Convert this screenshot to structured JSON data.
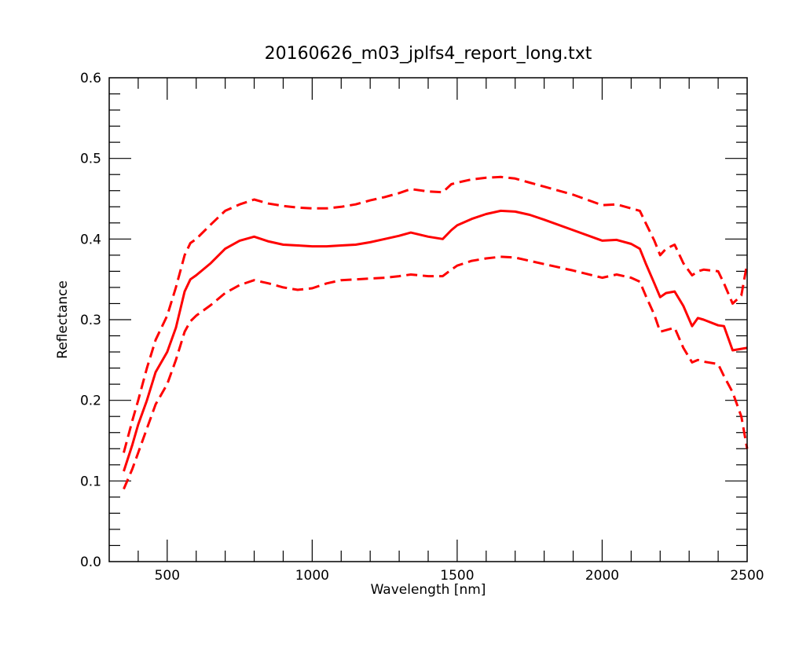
{
  "chart_data": {
    "type": "line",
    "title": "20160626_m03_jplfs4_report_long.txt",
    "xlabel": "Wavelength [nm]",
    "ylabel": "Reflectance",
    "xlim": [
      300,
      2500
    ],
    "ylim": [
      0.0,
      0.6
    ],
    "x_ticks": [
      500,
      1000,
      1500,
      2000,
      2500
    ],
    "y_ticks": [
      0.0,
      0.1,
      0.2,
      0.3,
      0.4,
      0.5,
      0.6
    ],
    "x_tick_labels": [
      "500",
      "1000",
      "1500",
      "2000",
      "2500"
    ],
    "y_tick_labels": [
      "0.0",
      "0.1",
      "0.2",
      "0.3",
      "0.4",
      "0.5",
      "0.6"
    ],
    "grid": false,
    "legend": "none",
    "color": "#ff0000",
    "series": [
      {
        "style": "solid",
        "x": [
          350,
          380,
          400,
          430,
          460,
          500,
          530,
          560,
          580,
          600,
          650,
          700,
          750,
          800,
          850,
          900,
          950,
          1000,
          1050,
          1100,
          1150,
          1200,
          1250,
          1300,
          1340,
          1400,
          1450,
          1480,
          1500,
          1550,
          1600,
          1650,
          1700,
          1750,
          1800,
          1900,
          2000,
          2050,
          2100,
          2130,
          2150,
          2180,
          2200,
          2220,
          2250,
          2280,
          2310,
          2330,
          2350,
          2400,
          2420,
          2450,
          2500
        ],
        "values": [
          0.112,
          0.145,
          0.17,
          0.2,
          0.235,
          0.26,
          0.29,
          0.335,
          0.35,
          0.355,
          0.37,
          0.388,
          0.398,
          0.403,
          0.397,
          0.393,
          0.392,
          0.391,
          0.391,
          0.392,
          0.393,
          0.396,
          0.4,
          0.404,
          0.408,
          0.403,
          0.4,
          0.411,
          0.417,
          0.425,
          0.431,
          0.435,
          0.434,
          0.43,
          0.424,
          0.411,
          0.398,
          0.399,
          0.394,
          0.388,
          0.37,
          0.345,
          0.328,
          0.333,
          0.335,
          0.317,
          0.292,
          0.302,
          0.3,
          0.293,
          0.292,
          0.262,
          0.265
        ]
      },
      {
        "style": "dashed",
        "x": [
          350,
          380,
          400,
          430,
          460,
          500,
          530,
          560,
          580,
          600,
          650,
          700,
          750,
          800,
          850,
          900,
          950,
          1000,
          1050,
          1100,
          1150,
          1200,
          1250,
          1300,
          1340,
          1400,
          1450,
          1480,
          1500,
          1550,
          1600,
          1650,
          1700,
          1750,
          1800,
          1900,
          2000,
          2050,
          2100,
          2130,
          2150,
          2180,
          2200,
          2220,
          2250,
          2280,
          2310,
          2330,
          2350,
          2400,
          2420,
          2450,
          2480,
          2500
        ],
        "values": [
          0.135,
          0.175,
          0.2,
          0.24,
          0.275,
          0.305,
          0.34,
          0.38,
          0.395,
          0.4,
          0.418,
          0.435,
          0.443,
          0.449,
          0.444,
          0.441,
          0.439,
          0.438,
          0.438,
          0.44,
          0.443,
          0.448,
          0.452,
          0.457,
          0.462,
          0.459,
          0.458,
          0.468,
          0.47,
          0.474,
          0.476,
          0.477,
          0.475,
          0.47,
          0.465,
          0.455,
          0.442,
          0.443,
          0.438,
          0.435,
          0.42,
          0.398,
          0.38,
          0.388,
          0.393,
          0.37,
          0.355,
          0.36,
          0.362,
          0.36,
          0.345,
          0.32,
          0.33,
          0.37
        ]
      },
      {
        "style": "dashed",
        "x": [
          350,
          380,
          400,
          430,
          460,
          500,
          530,
          560,
          580,
          600,
          650,
          700,
          750,
          800,
          850,
          900,
          950,
          1000,
          1050,
          1100,
          1150,
          1200,
          1250,
          1300,
          1340,
          1400,
          1450,
          1480,
          1500,
          1550,
          1600,
          1650,
          1700,
          1750,
          1800,
          1900,
          2000,
          2050,
          2100,
          2130,
          2150,
          2180,
          2200,
          2220,
          2250,
          2280,
          2310,
          2330,
          2350,
          2400,
          2420,
          2450,
          2480,
          2500
        ],
        "values": [
          0.09,
          0.115,
          0.135,
          0.165,
          0.195,
          0.22,
          0.25,
          0.285,
          0.298,
          0.305,
          0.318,
          0.333,
          0.343,
          0.349,
          0.345,
          0.34,
          0.337,
          0.339,
          0.345,
          0.349,
          0.35,
          0.351,
          0.352,
          0.354,
          0.356,
          0.354,
          0.354,
          0.362,
          0.367,
          0.373,
          0.376,
          0.378,
          0.377,
          0.373,
          0.369,
          0.361,
          0.352,
          0.356,
          0.352,
          0.347,
          0.33,
          0.306,
          0.285,
          0.287,
          0.29,
          0.265,
          0.247,
          0.25,
          0.248,
          0.245,
          0.23,
          0.21,
          0.18,
          0.14
        ]
      }
    ]
  }
}
